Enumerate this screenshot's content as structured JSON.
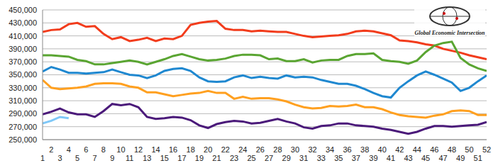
{
  "chart_data": {
    "type": "line",
    "annotations": [
      "Global Economic Intersection"
    ],
    "x": [
      1,
      2,
      3,
      4,
      5,
      6,
      7,
      8,
      9,
      10,
      11,
      12,
      13,
      14,
      15,
      16,
      17,
      18,
      19,
      20,
      21,
      22,
      23,
      24,
      25,
      26,
      27,
      28,
      29,
      30,
      31,
      32,
      33,
      34,
      35,
      36,
      37,
      38,
      39,
      40,
      41,
      42,
      43,
      44,
      45,
      46,
      47,
      48,
      49,
      50,
      51,
      52
    ],
    "xlim": [
      1,
      52
    ],
    "xticks": [
      1,
      2,
      3,
      4,
      5,
      6,
      7,
      8,
      9,
      10,
      11,
      12,
      13,
      14,
      15,
      16,
      17,
      18,
      19,
      20,
      21,
      22,
      23,
      24,
      25,
      26,
      27,
      28,
      29,
      30,
      31,
      32,
      33,
      34,
      35,
      36,
      37,
      38,
      39,
      40,
      41,
      42,
      43,
      44,
      45,
      46,
      47,
      48,
      49,
      50,
      51,
      52
    ],
    "ylim": [
      250000,
      450000
    ],
    "yticks": [
      {
        "value": 250000,
        "label": "250,000"
      },
      {
        "value": 270000,
        "label": "270,000"
      },
      {
        "value": 290000,
        "label": "290,000"
      },
      {
        "value": 310000,
        "label": "310,000"
      },
      {
        "value": 330000,
        "label": "330,000"
      },
      {
        "value": 350000,
        "label": "350,000"
      },
      {
        "value": 370000,
        "label": "370,000"
      },
      {
        "value": 390000,
        "label": "390,000"
      },
      {
        "value": 410000,
        "label": "410,000"
      },
      {
        "value": 430000,
        "label": "430,000"
      },
      {
        "value": 450000,
        "label": "450,000"
      }
    ],
    "grid": true,
    "series": [
      {
        "color": "#f23c1c",
        "values": [
          416000,
          419000,
          420000,
          428000,
          430000,
          424000,
          425000,
          413000,
          405000,
          408000,
          402000,
          404000,
          407000,
          402000,
          406000,
          405000,
          410000,
          427000,
          430000,
          432000,
          433000,
          421000,
          419000,
          419000,
          417000,
          418000,
          417000,
          416000,
          416000,
          413000,
          410000,
          408000,
          409000,
          410000,
          411000,
          413000,
          417000,
          418000,
          417000,
          414000,
          411000,
          403000,
          402000,
          400000,
          397000,
          395000,
          390000,
          387000,
          384000,
          380000,
          377000,
          374000
        ]
      },
      {
        "color": "#5aa532",
        "values": [
          380000,
          380000,
          379000,
          378000,
          373000,
          371000,
          366000,
          366000,
          368000,
          370000,
          372000,
          370000,
          366000,
          370000,
          374000,
          379000,
          382000,
          378000,
          374000,
          372000,
          373000,
          375000,
          379000,
          381000,
          381000,
          380000,
          374000,
          375000,
          371000,
          371000,
          374000,
          369000,
          372000,
          373000,
          373000,
          379000,
          382000,
          382000,
          383000,
          373000,
          371000,
          370000,
          367000,
          372000,
          385000,
          395000,
          399000,
          401000,
          376000,
          366000,
          360000,
          356000
        ]
      },
      {
        "color": "#1f88d0",
        "values": [
          355000,
          362000,
          358000,
          353000,
          353000,
          352000,
          353000,
          354000,
          358000,
          354000,
          350000,
          349000,
          345000,
          349000,
          356000,
          359000,
          360000,
          356000,
          346000,
          340000,
          339000,
          340000,
          346000,
          349000,
          345000,
          347000,
          345000,
          344000,
          349000,
          346000,
          347000,
          346000,
          342000,
          339000,
          336000,
          336000,
          333000,
          328000,
          322000,
          317000,
          315000,
          330000,
          340000,
          349000,
          355000,
          350000,
          344000,
          338000,
          325000,
          330000,
          340000,
          349000
        ]
      },
      {
        "color": "#ffa020",
        "values": [
          342000,
          330000,
          328000,
          329000,
          330000,
          332000,
          336000,
          337000,
          337000,
          336000,
          332000,
          330000,
          323000,
          323000,
          320000,
          317000,
          319000,
          321000,
          322000,
          325000,
          322000,
          322000,
          313000,
          316000,
          313000,
          314000,
          314000,
          312000,
          309000,
          304000,
          300000,
          298000,
          299000,
          302000,
          301000,
          302000,
          304000,
          300000,
          300000,
          297000,
          292000,
          288000,
          286000,
          285000,
          284000,
          287000,
          289000,
          294000,
          295000,
          294000,
          288000,
          288000
        ]
      },
      {
        "color": "#4b1a7a",
        "values": [
          289000,
          293000,
          298000,
          292000,
          289000,
          289000,
          285000,
          294000,
          305000,
          303000,
          305000,
          300000,
          285000,
          282000,
          283000,
          285000,
          284000,
          280000,
          272000,
          268000,
          274000,
          277000,
          279000,
          278000,
          275000,
          276000,
          279000,
          282000,
          278000,
          275000,
          269000,
          267000,
          271000,
          272000,
          275000,
          275000,
          272000,
          271000,
          270000,
          267000,
          265000,
          262000,
          259000,
          262000,
          267000,
          271000,
          271000,
          270000,
          271000,
          272000,
          273000,
          277000
        ]
      },
      {
        "color": "#7fc8f8",
        "values": [
          275000,
          279000,
          285000,
          283000,
          null,
          null,
          null,
          null,
          null,
          null,
          null,
          null,
          null,
          null,
          null,
          null,
          null,
          null,
          null,
          null,
          null,
          null,
          null,
          null,
          null,
          null,
          null,
          null,
          null,
          null,
          null,
          null,
          null,
          null,
          null,
          null,
          null,
          null,
          null,
          null,
          null,
          null,
          null,
          null,
          null,
          null,
          null,
          null,
          null,
          null,
          null,
          null
        ]
      }
    ]
  }
}
